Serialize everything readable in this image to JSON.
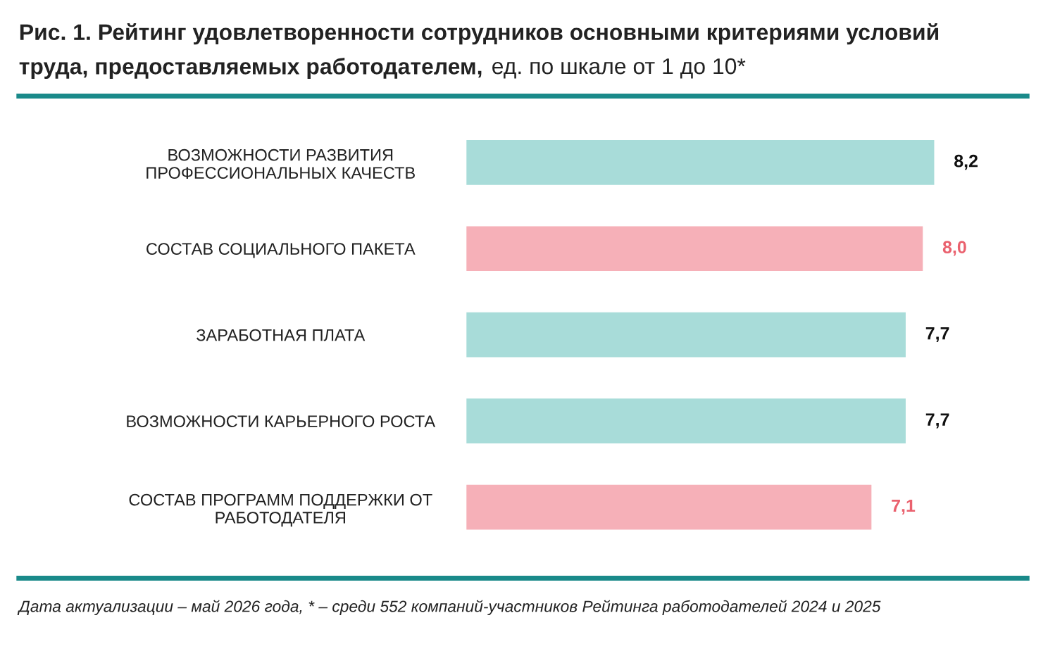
{
  "chart_data": {
    "type": "bar",
    "orientation": "horizontal",
    "title": "Рис. 1. Рейтинг удовлетворенности сотрудников основными критериями условий\nтруда, предоставляемых работодателем,",
    "subtitle": "ед. по шкале от 1 до 10*",
    "categories": [
      "ВОЗМОЖНОСТИ РАЗВИТИЯ\nПРОФЕССИОНАЛЬНЫХ КАЧЕСТВ",
      "СОСТАВ СОЦИАЛЬНОГО ПАКЕТА",
      "ЗАРАБОТНАЯ ПЛАТА",
      "ВОЗМОЖНОСТИ КАРЬЕРНОГО РОСТА",
      "СОСТАВ ПРОГРАММ ПОДДЕРЖКИ ОТ\nРАБОТОДАТЕЛЯ"
    ],
    "values": [
      8.2,
      8.0,
      7.7,
      7.7,
      7.1
    ],
    "colors": [
      "#a8dcd9",
      "#f6b0b8",
      "#a8dcd9",
      "#a8dcd9",
      "#f6b0b8"
    ],
    "value_labels": [
      "8,2",
      "8,0",
      "7,7",
      "7,7",
      "7,1"
    ],
    "tick_labels": "y",
    "grid": false,
    "legend": false,
    "annotations": [
      "Дата актуализации – май 2026 года, * – среди 552 компаний-участников Рейтинга работодателей 2024 и 2025"
    ]
  }
}
